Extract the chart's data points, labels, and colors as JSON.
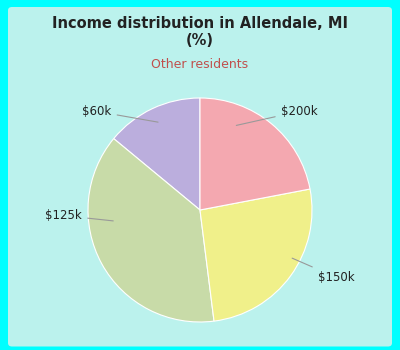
{
  "title": "Income distribution in Allendale, MI\n(%)",
  "subtitle": "Other residents",
  "title_color": "#222222",
  "subtitle_color": "#c0504d",
  "background_color": "#00ffff",
  "inner_bg_color": "#cceee4",
  "labels": [
    "$200k",
    "$150k",
    "$125k",
    "$60k"
  ],
  "values": [
    14,
    38,
    26,
    22
  ],
  "colors": [
    "#bbaedd",
    "#c8dba8",
    "#f0f08a",
    "#f4a8b0"
  ],
  "startangle": 90,
  "figsize": [
    4.0,
    3.5
  ],
  "dpi": 100
}
